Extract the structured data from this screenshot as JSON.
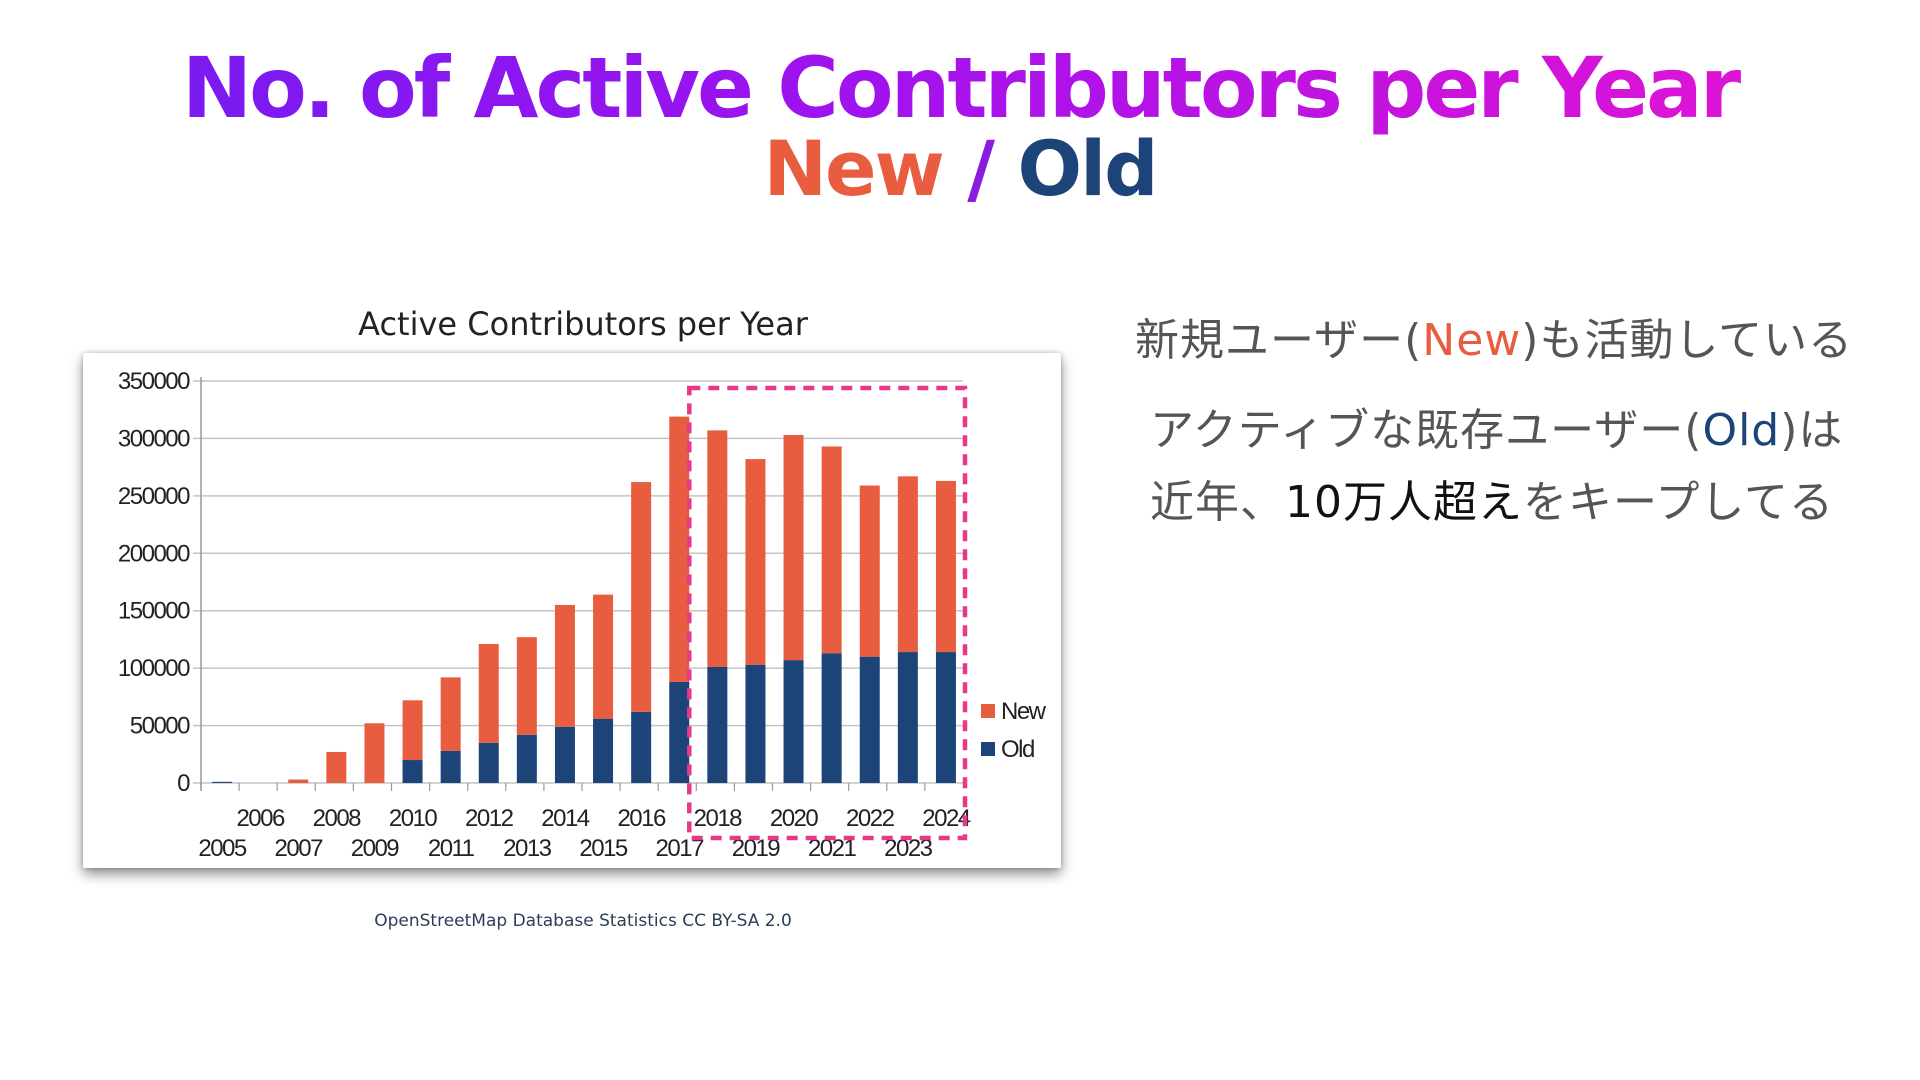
{
  "header": {
    "title": "No. of Active Contributors per Year",
    "subtitle_new": "New",
    "subtitle_sep": " / ",
    "subtitle_old": "Old"
  },
  "colors": {
    "new": "#e85c40",
    "old": "#1c4478",
    "highlight": "#e6398a",
    "title_gradient": [
      "#6f1cf2",
      "#ea14cf"
    ]
  },
  "chart_data": {
    "type": "bar",
    "stacked": true,
    "title": "Active Contributors per Year",
    "categories": [
      "2005",
      "2006",
      "2007",
      "2008",
      "2009",
      "2010",
      "2011",
      "2012",
      "2013",
      "2014",
      "2015",
      "2016",
      "2017",
      "2018",
      "2019",
      "2020",
      "2021",
      "2022",
      "2023",
      "2024"
    ],
    "series": [
      {
        "name": "Old",
        "color": "#1c4478",
        "values": [
          1000,
          0,
          0,
          0,
          0,
          20000,
          28000,
          35000,
          42000,
          49000,
          56000,
          62000,
          88000,
          101000,
          103000,
          107000,
          113000,
          110000,
          114000,
          114000
        ]
      },
      {
        "name": "New",
        "color": "#e85c40",
        "values": [
          0,
          0,
          3000,
          27000,
          52000,
          52000,
          64000,
          86000,
          85000,
          106000,
          108000,
          200000,
          231000,
          206000,
          179000,
          196000,
          180000,
          149000,
          153000,
          149000
        ]
      }
    ],
    "yticks": [
      "0",
      "50000",
      "100000",
      "150000",
      "200000",
      "250000",
      "300000",
      "350000"
    ],
    "ylim": [
      0,
      350000
    ],
    "grid": true,
    "legend": "right",
    "highlight_range": [
      "2018",
      "2024"
    ]
  },
  "source": "OpenStreetMap Database Statistics  CC BY-SA 2.0",
  "notes": {
    "line1": {
      "a": "新規ユーザー(",
      "b": "New",
      "c": ")も活動している"
    },
    "line2": {
      "a": "アクティブな既存ユーザー(",
      "b": "Old",
      "c": ")は"
    },
    "line3": {
      "a": "近年、",
      "b": "10万人超え",
      "c": "をキープしてる"
    }
  }
}
